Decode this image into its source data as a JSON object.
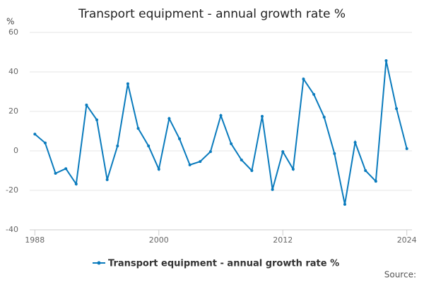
{
  "chart_data": {
    "type": "line",
    "title": "Transport equipment - annual growth rate %",
    "y_label": "%",
    "x": [
      1988,
      1989,
      1990,
      1991,
      1992,
      1993,
      1994,
      1995,
      1996,
      1997,
      1998,
      1999,
      2000,
      2001,
      2002,
      2003,
      2004,
      2005,
      2006,
      2007,
      2008,
      2009,
      2010,
      2011,
      2012,
      2013,
      2014,
      2015,
      2016,
      2017,
      2018,
      2019,
      2020,
      2021,
      2022,
      2023,
      2024
    ],
    "series": [
      {
        "name": "Transport equipment - annual growth rate %",
        "color": "#0a7bbd",
        "values": [
          8.5,
          4,
          -11.4,
          -9,
          -16.8,
          23.2,
          15.7,
          -14.6,
          2.5,
          34,
          11.4,
          2.5,
          -9.3,
          16.4,
          6.1,
          -7.1,
          -5.4,
          -0.4,
          17.9,
          3.6,
          -4.6,
          -10,
          17.5,
          -19.6,
          -0.4,
          -9.3,
          36.4,
          28.6,
          17.1,
          -1.4,
          -27.1,
          4.3,
          -10,
          -15.4,
          45.7,
          21.4,
          1.1
        ]
      }
    ],
    "xlim": [
      1987.5,
      2024.5
    ],
    "xticks": [
      1988,
      2000,
      2012,
      2024
    ],
    "ylim": [
      -40,
      60
    ],
    "yticks": [
      -40,
      -20,
      0,
      20,
      40,
      60
    ],
    "grid": true,
    "source": "Source:"
  }
}
